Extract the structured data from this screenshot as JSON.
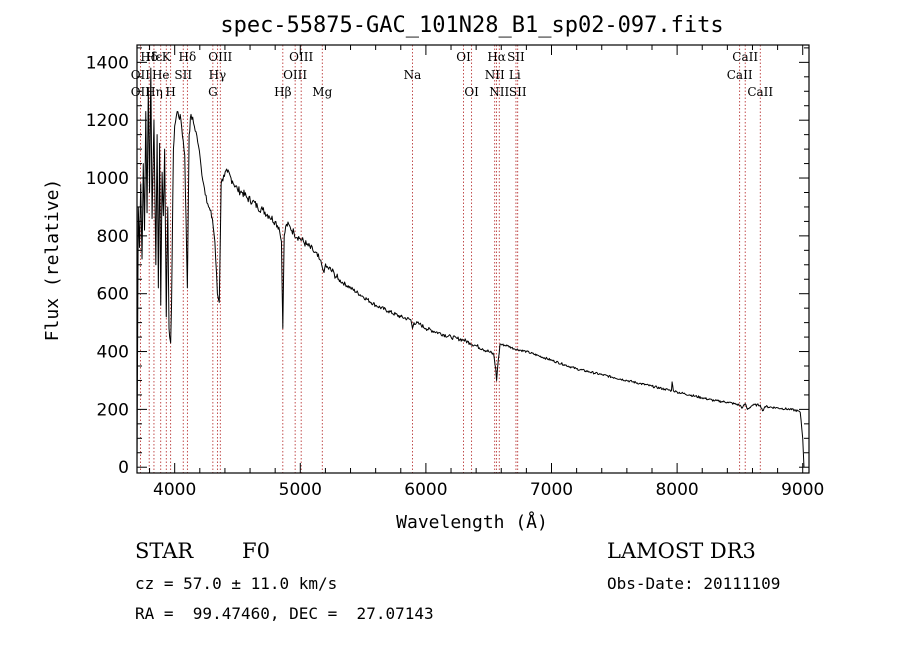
{
  "chart_data": {
    "type": "line",
    "title": "spec-55875-GAC_101N28_B1_sp02-097.fits",
    "xlabel": "Wavelength (Å)",
    "ylabel": "Flux (relative)",
    "xlim": [
      3700,
      9050
    ],
    "ylim": [
      -20,
      1460
    ],
    "xticks": [
      4000,
      5000,
      6000,
      7000,
      8000,
      9000
    ],
    "yticks": [
      0,
      200,
      400,
      600,
      800,
      1000,
      1200,
      1400
    ],
    "series": [
      {
        "name": "spectrum",
        "x": [
          3700,
          3710,
          3720,
          3730,
          3740,
          3750,
          3760,
          3770,
          3780,
          3790,
          3800,
          3810,
          3820,
          3835,
          3850,
          3860,
          3870,
          3880,
          3889,
          3900,
          3910,
          3920,
          3933,
          3945,
          3955,
          3960,
          3968,
          3975,
          3990,
          4000,
          4020,
          4050,
          4080,
          4101,
          4115,
          4130,
          4150,
          4170,
          4190,
          4210,
          4230,
          4250,
          4270,
          4300,
          4320,
          4340,
          4355,
          4370,
          4390,
          4420,
          4460,
          4500,
          4540,
          4580,
          4620,
          4660,
          4700,
          4750,
          4800,
          4830,
          4850,
          4861,
          4872,
          4890,
          4920,
          4950,
          5000,
          5050,
          5100,
          5150,
          5170,
          5183,
          5195,
          5220,
          5270,
          5300,
          5400,
          5500,
          5600,
          5700,
          5800,
          5880,
          5893,
          5905,
          5950,
          6000,
          6100,
          6200,
          6250,
          6300,
          6350,
          6400,
          6450,
          6500,
          6540,
          6556,
          6563,
          6570,
          6590,
          6650,
          6700,
          6800,
          6900,
          7000,
          7100,
          7200,
          7300,
          7400,
          7500,
          7600,
          7700,
          7800,
          7900,
          7955,
          7960,
          7970,
          8000,
          8100,
          8200,
          8300,
          8400,
          8498,
          8520,
          8542,
          8560,
          8600,
          8662,
          8680,
          8700,
          8800,
          8900,
          8960,
          8980,
          9000,
          9010
        ],
        "values": [
          0,
          900,
          760,
          980,
          720,
          1050,
          820,
          1230,
          880,
          1310,
          950,
          1380,
          860,
          1200,
          700,
          1150,
          620,
          1120,
          560,
          1020,
          870,
          1100,
          520,
          900,
          480,
          450,
          430,
          560,
          1100,
          1180,
          1230,
          1200,
          1080,
          620,
          1150,
          1220,
          1190,
          1160,
          1110,
          1040,
          980,
          940,
          900,
          860,
          780,
          600,
          570,
          980,
          1010,
          1020,
          990,
          960,
          950,
          930,
          920,
          900,
          890,
          870,
          850,
          830,
          780,
          480,
          800,
          840,
          830,
          810,
          790,
          770,
          750,
          720,
          700,
          680,
          690,
          690,
          670,
          650,
          620,
          590,
          560,
          540,
          520,
          510,
          480,
          500,
          495,
          480,
          465,
          450,
          445,
          440,
          430,
          420,
          410,
          400,
          390,
          340,
          300,
          340,
          425,
          420,
          410,
          400,
          385,
          370,
          355,
          340,
          330,
          320,
          310,
          300,
          290,
          280,
          270,
          265,
          295,
          265,
          260,
          250,
          240,
          230,
          225,
          215,
          205,
          220,
          200,
          215,
          215,
          195,
          210,
          205,
          200,
          195,
          190,
          100,
          0
        ]
      }
    ],
    "spectral_lines": [
      {
        "label": "Hδ",
        "x": 3797,
        "row": 1
      },
      {
        "label": "OII",
        "x": 3727,
        "row": 2
      },
      {
        "label": "OII",
        "x": 3727,
        "row": 3
      },
      {
        "label": "Hε",
        "x": 3835,
        "row": 1
      },
      {
        "label": "He",
        "x": 3889,
        "row": 2
      },
      {
        "label": "Hη",
        "x": 3835,
        "row": 3
      },
      {
        "label": "K",
        "x": 3933,
        "row": 1
      },
      {
        "label": "H",
        "x": 3968,
        "row": 3
      },
      {
        "label": "SII",
        "x": 4068,
        "row": 2
      },
      {
        "label": "Hδ",
        "x": 4101,
        "row": 1
      },
      {
        "label": "OIII",
        "x": 4363,
        "row": 1
      },
      {
        "label": "Hγ",
        "x": 4340,
        "row": 2
      },
      {
        "label": "G",
        "x": 4304,
        "row": 3
      },
      {
        "label": "Hβ",
        "x": 4861,
        "row": 3
      },
      {
        "label": "OIII",
        "x": 5007,
        "row": 1
      },
      {
        "label": "OIII",
        "x": 4959,
        "row": 2
      },
      {
        "label": "Mg",
        "x": 5175,
        "row": 3
      },
      {
        "label": "Na",
        "x": 5893,
        "row": 2
      },
      {
        "label": "OI",
        "x": 6300,
        "row": 1
      },
      {
        "label": "OI",
        "x": 6364,
        "row": 3
      },
      {
        "label": "Hα",
        "x": 6563,
        "row": 1
      },
      {
        "label": "NII",
        "x": 6548,
        "row": 2
      },
      {
        "label": "NII",
        "x": 6584,
        "row": 3
      },
      {
        "label": "SII",
        "x": 6717,
        "row": 1
      },
      {
        "label": "Li",
        "x": 6708,
        "row": 2
      },
      {
        "label": "SII",
        "x": 6731,
        "row": 3
      },
      {
        "label": "CaII",
        "x": 8542,
        "row": 1
      },
      {
        "label": "CaII",
        "x": 8498,
        "row": 2
      },
      {
        "label": "CaII",
        "x": 8662,
        "row": 3
      }
    ],
    "spectral_line_positions": [
      3727,
      3797,
      3835,
      3889,
      3933,
      3968,
      4068,
      4101,
      4304,
      4340,
      4363,
      4861,
      4959,
      5007,
      5175,
      5893,
      6300,
      6364,
      6548,
      6563,
      6584,
      6717,
      6731,
      8498,
      8542,
      8662
    ]
  },
  "info": {
    "object_class": "STAR",
    "subclass": "F0",
    "survey": "LAMOST DR3",
    "redshift": "cz = 57.0 ± 11.0 km/s",
    "obs_date": "Obs-Date: 20111109",
    "coords": "RA =  99.47460, DEC =  27.07143"
  }
}
